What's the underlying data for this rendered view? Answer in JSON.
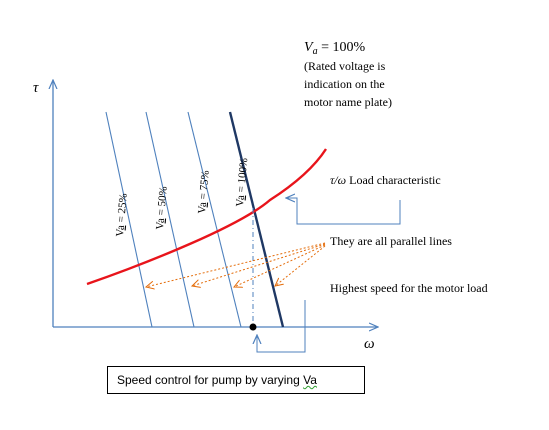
{
  "axes": {
    "y_symbol": "τ",
    "x_symbol": "ω"
  },
  "rated_label": {
    "var": "V",
    "sub": "a",
    "value": " = 100%",
    "lines": [
      "(Rated voltage is",
      "indication on the",
      "motor name plate)"
    ]
  },
  "voltage_lines": [
    {
      "pre": "V",
      "sq": "a",
      "post": " = 25%"
    },
    {
      "pre": "V",
      "sq": "a",
      "post": " = 50%"
    },
    {
      "pre": "V",
      "sq": "a",
      "post": " = 75%"
    },
    {
      "pre": "V",
      "sq": "a",
      "post": " = 100%"
    }
  ],
  "load_label": {
    "symbol": "τ/ω",
    "text": " Load characteristic"
  },
  "parallel_label": "They are all parallel lines",
  "highest_speed_label": "Highest speed for the motor load",
  "caption": {
    "text": "Speed control for pump by varying ",
    "var": "Va"
  },
  "colors": {
    "axis": "#4f81bd",
    "voltage_line": "#4f81bd",
    "rated_line": "#1f3864",
    "load_curve": "#e8141b",
    "arrows": "#e46c0a",
    "pointer": "#4f81bd"
  }
}
